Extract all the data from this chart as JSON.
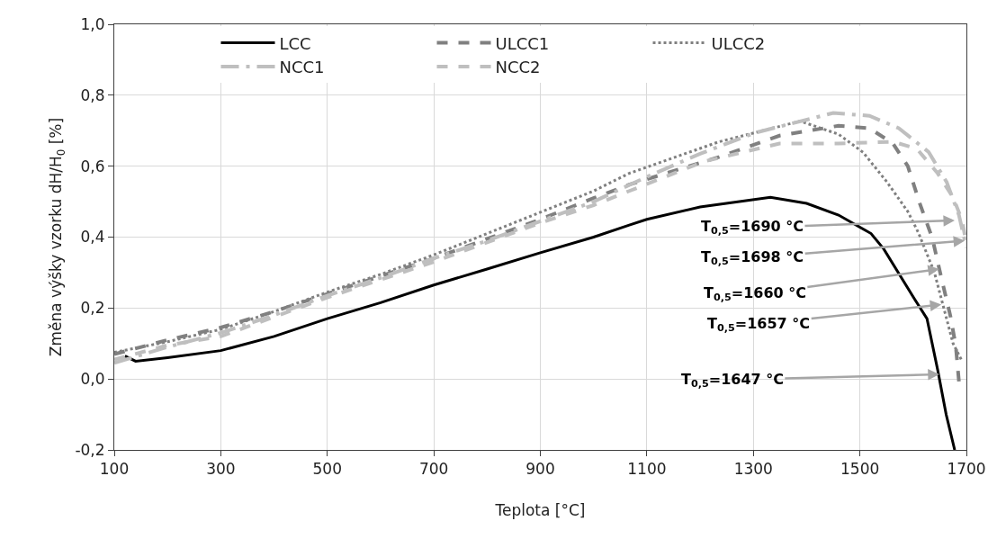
{
  "chart_data": {
    "type": "line",
    "xlabel": "Teplota [°C]",
    "ylabel": "Změna výšky vzorku dH/H$_{0}$ [%]",
    "xlim": [
      100,
      1700
    ],
    "xticks": [
      100,
      300,
      500,
      700,
      900,
      1100,
      1300,
      1500,
      1700
    ],
    "ylim": [
      -0.2,
      1.0
    ],
    "yticks": [
      {
        "value": -0.2,
        "label": "-0,2"
      },
      {
        "value": 0,
        "label": "0,0"
      },
      {
        "value": 0.2,
        "label": "0,2"
      },
      {
        "value": 0.4,
        "label": "0,4"
      },
      {
        "value": 0.6,
        "label": "0,6"
      },
      {
        "value": 0.8,
        "label": "0,8"
      },
      {
        "value": 1.0,
        "label": "1,0"
      }
    ],
    "grid": true,
    "legend": "top",
    "marker": "none",
    "series": [
      {
        "name": "LCC",
        "color": "#000000",
        "line_style": "solid",
        "x": [
          120,
          140,
          200,
          300,
          400,
          500,
          600,
          700,
          800,
          900,
          1000,
          1067,
          1100,
          1200,
          1332,
          1400,
          1460,
          1521,
          1545,
          1602,
          1626,
          1646,
          1662,
          1678
        ],
        "values": [
          0.065,
          0.05,
          0.06,
          0.08,
          0.12,
          0.17,
          0.215,
          0.265,
          0.31,
          0.356,
          0.4,
          0.434,
          0.45,
          0.485,
          0.512,
          0.495,
          0.462,
          0.41,
          0.366,
          0.227,
          0.17,
          0.026,
          -0.1,
          -0.2
        ]
      },
      {
        "name": "ULCC1",
        "color": "#808080",
        "line_style": "dashed",
        "x": [
          100,
          200,
          300,
          400,
          500,
          600,
          700,
          800,
          900,
          1000,
          1067,
          1236,
          1349,
          1460,
          1518,
          1562,
          1590,
          1612,
          1636,
          1653,
          1670,
          1680,
          1686
        ],
        "values": [
          0.07,
          0.11,
          0.145,
          0.19,
          0.24,
          0.29,
          0.34,
          0.395,
          0.45,
          0.51,
          0.548,
          0.626,
          0.686,
          0.714,
          0.707,
          0.664,
          0.6,
          0.497,
          0.397,
          0.285,
          0.177,
          0.094,
          -0.007
        ]
      },
      {
        "name": "ULCC2",
        "color": "#808080",
        "line_style": "dotted",
        "x": [
          100,
          200,
          300,
          400,
          500,
          600,
          700,
          800,
          900,
          1000,
          1067,
          1236,
          1388,
          1460,
          1506,
          1551,
          1590,
          1610,
          1640,
          1675,
          1692
        ],
        "values": [
          0.075,
          0.105,
          0.14,
          0.19,
          0.245,
          0.295,
          0.35,
          0.41,
          0.47,
          0.53,
          0.58,
          0.669,
          0.727,
          0.69,
          0.639,
          0.555,
          0.472,
          0.412,
          0.3,
          0.1,
          0.05
        ]
      },
      {
        "name": "NCC1",
        "color": "#bfbfbf",
        "line_style": "dashdot",
        "x": [
          100,
          200,
          300,
          400,
          500,
          600,
          700,
          800,
          900,
          1000,
          1100,
          1200,
          1303,
          1450,
          1518,
          1573,
          1629,
          1663,
          1686,
          1700
        ],
        "values": [
          0.045,
          0.09,
          0.13,
          0.18,
          0.235,
          0.285,
          0.34,
          0.39,
          0.445,
          0.5,
          0.57,
          0.635,
          0.694,
          0.75,
          0.742,
          0.707,
          0.64,
          0.555,
          0.462,
          0.37
        ]
      },
      {
        "name": "NCC2",
        "color": "#bfbfbf",
        "line_style": "dashed",
        "x": [
          100,
          200,
          300,
          400,
          500,
          600,
          700,
          800,
          900,
          1000,
          1067,
          1207,
          1349,
          1460,
          1562,
          1607,
          1646,
          1675,
          1692,
          1700
        ],
        "values": [
          0.055,
          0.095,
          0.12,
          0.175,
          0.23,
          0.28,
          0.33,
          0.385,
          0.44,
          0.49,
          0.53,
          0.613,
          0.664,
          0.664,
          0.669,
          0.649,
          0.58,
          0.512,
          0.447,
          0.38
        ]
      }
    ],
    "annotations": [
      {
        "text": "T$_{0,5}$=1690 °C",
        "x": 1678,
        "y": 0.447
      },
      {
        "text": "T$_{0,5}$=1698 °C",
        "x": 1697,
        "y": 0.39
      },
      {
        "text": "T$_{0,5}$=1660 °C",
        "x": 1649,
        "y": 0.31
      },
      {
        "text": "T$_{0,5}$=1657 °C",
        "x": 1653,
        "y": 0.21
      },
      {
        "text": "T$_{0,5}$=1647 °C",
        "x": 1649,
        "y": 0.013
      }
    ]
  }
}
